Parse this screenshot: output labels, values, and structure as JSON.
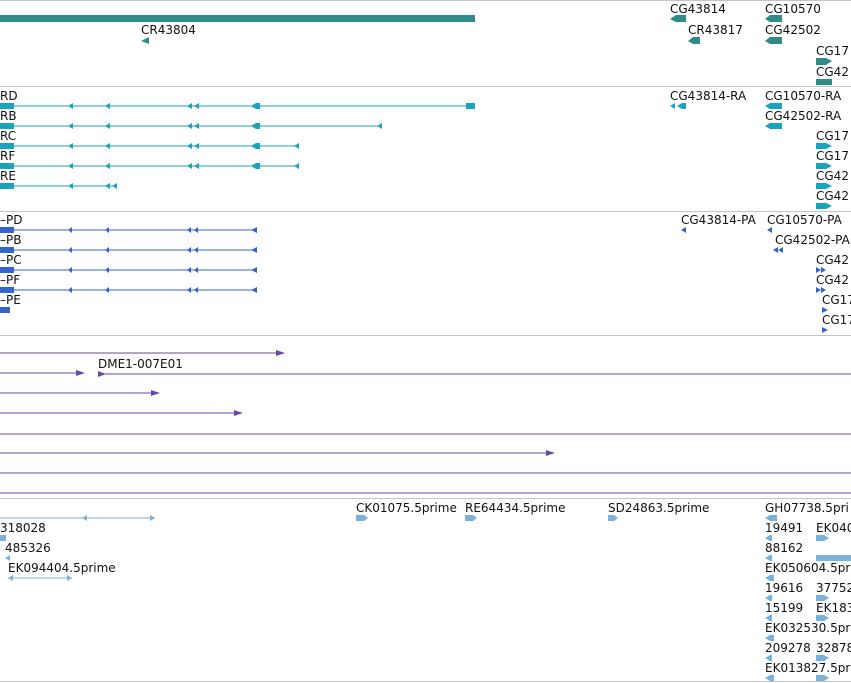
{
  "colors": {
    "gene": "#2e8b87",
    "transcript": "#1aa3bd",
    "protein": "#3366cc",
    "clone": "#6a4aa0",
    "est": "#7ab0dc",
    "separator": "#c4c4c4"
  },
  "tracks": {
    "genes": {
      "labels": [
        "CR43804",
        "CG43814",
        "CR43817",
        "CG10570",
        "CG42502",
        "CG17",
        "CG42"
      ]
    },
    "transcripts": {
      "labels": [
        "RD",
        "RB",
        "RC",
        "RF",
        "RE",
        "CG43814-RA",
        "CG10570-RA",
        "CG42502-RA",
        "CG17",
        "CG17",
        "CG42",
        "CG42"
      ]
    },
    "proteins": {
      "labels": [
        "–PD",
        "–PB",
        "–PC",
        "–PF",
        "–PE",
        "CG43814-PA",
        "CG10570-PA",
        "CG42502-PA",
        "CG42",
        "CG42",
        "CG17",
        "CG17"
      ]
    },
    "clones": {
      "labels": [
        "DME1-007E01"
      ]
    },
    "ests": {
      "labels": [
        "318028",
        "485326",
        "EK094404.5prime",
        "CK01075.5prime",
        "RE64434.5prime",
        "SD24863.5prime",
        "GH07738.5pri",
        "19491",
        "EK040",
        "88162",
        "EK050604.5pri",
        "19616",
        "37752",
        "15199",
        "EK183",
        "EK032530.5pri",
        "209278",
        "32878",
        "EK013827.5pri"
      ]
    }
  }
}
